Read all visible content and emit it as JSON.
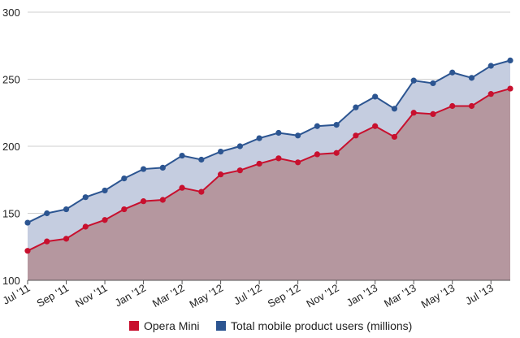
{
  "chart_data": {
    "type": "area",
    "title": "",
    "xlabel": "",
    "ylabel": "",
    "ylim": [
      100,
      300
    ],
    "yticks": [
      100,
      150,
      200,
      250,
      300
    ],
    "grid": true,
    "legend_position": "bottom",
    "x": [
      "Jul '11",
      "Aug '11",
      "Sep '11",
      "Oct '11",
      "Nov '11",
      "Dec '11",
      "Jan '12",
      "Feb '12",
      "Mar '12",
      "Apr '12",
      "May '12",
      "Jun '12",
      "Jul '12",
      "Aug '12",
      "Sep '12",
      "Oct '12",
      "Nov '12",
      "Dec '12",
      "Jan '13",
      "Feb '13",
      "Mar '13",
      "Apr '13",
      "May '13",
      "Jun '13",
      "Jul '13",
      "Aug '13"
    ],
    "xtick_labels": [
      "Jul '11",
      "Sep '11",
      "Nov '11",
      "Jan '12",
      "Mar '12",
      "May '12",
      "Jul '12",
      "Sep '12",
      "Nov '12",
      "Jan '13",
      "Mar '13",
      "May '13",
      "Jul '13"
    ],
    "series": [
      {
        "name": "Opera Mini",
        "line_color": "#c8102e",
        "fill_color": "#b5979f",
        "values": [
          122,
          129,
          131,
          140,
          145,
          153,
          159,
          160,
          169,
          166,
          179,
          182,
          187,
          191,
          188,
          194,
          195,
          208,
          215,
          207,
          225,
          224,
          230,
          230,
          239,
          243
        ]
      },
      {
        "name": "Total mobile product users (millions)",
        "line_color": "#2c5591",
        "fill_color": "#c5cde0",
        "values": [
          143,
          150,
          153,
          162,
          167,
          176,
          183,
          184,
          193,
          190,
          196,
          200,
          206,
          210,
          208,
          215,
          216,
          229,
          237,
          228,
          249,
          247,
          255,
          251,
          260,
          264
        ]
      }
    ]
  }
}
